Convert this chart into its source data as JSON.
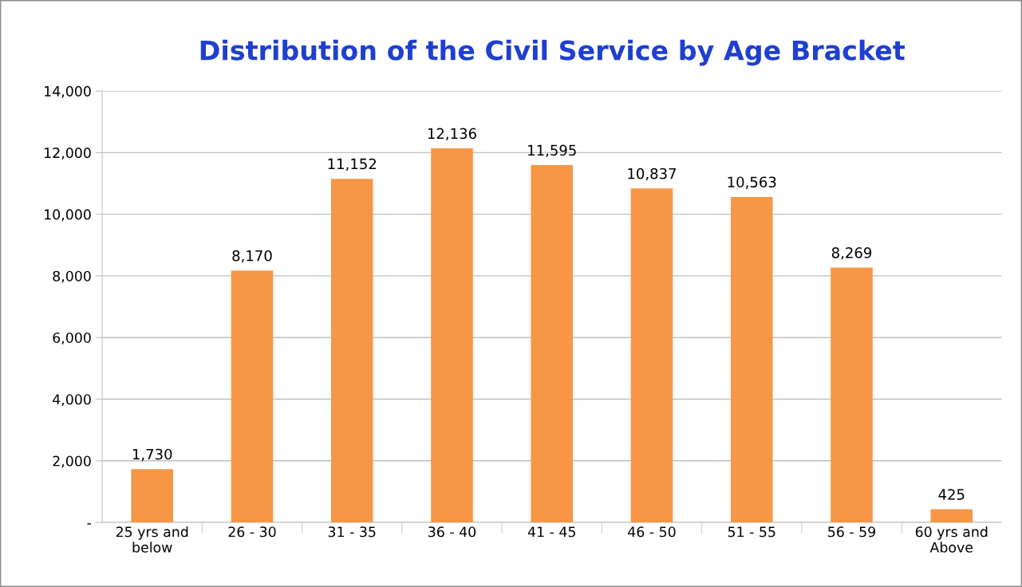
{
  "chart_data": {
    "type": "bar",
    "title": "Distribution of the Civil Service by Age Bracket",
    "categories": [
      "25 yrs and\nbelow",
      "26 - 30",
      "31 - 35",
      "36 - 40",
      "41 - 45",
      "46 - 50",
      "51 - 55",
      "56 - 59",
      "60 yrs and\nAbove"
    ],
    "values": [
      1730,
      8170,
      11152,
      12136,
      11595,
      10837,
      10563,
      8269,
      425
    ],
    "value_labels": [
      "1,730",
      "8,170",
      "11,152",
      "12,136",
      "11,595",
      "10,837",
      "10,563",
      "8,269",
      "425"
    ],
    "color": "#f79646",
    "ylim": [
      0,
      14000
    ],
    "yticks": [
      {
        "value": 0,
        "label": "-"
      },
      {
        "value": 2000,
        "label": "2,000"
      },
      {
        "value": 4000,
        "label": "4,000"
      },
      {
        "value": 6000,
        "label": "6,000"
      },
      {
        "value": 8000,
        "label": "8,000"
      },
      {
        "value": 10000,
        "label": "10,000"
      },
      {
        "value": 12000,
        "label": "12,000"
      },
      {
        "value": 14000,
        "label": "14,000"
      }
    ],
    "grid": "y",
    "legend": false
  }
}
